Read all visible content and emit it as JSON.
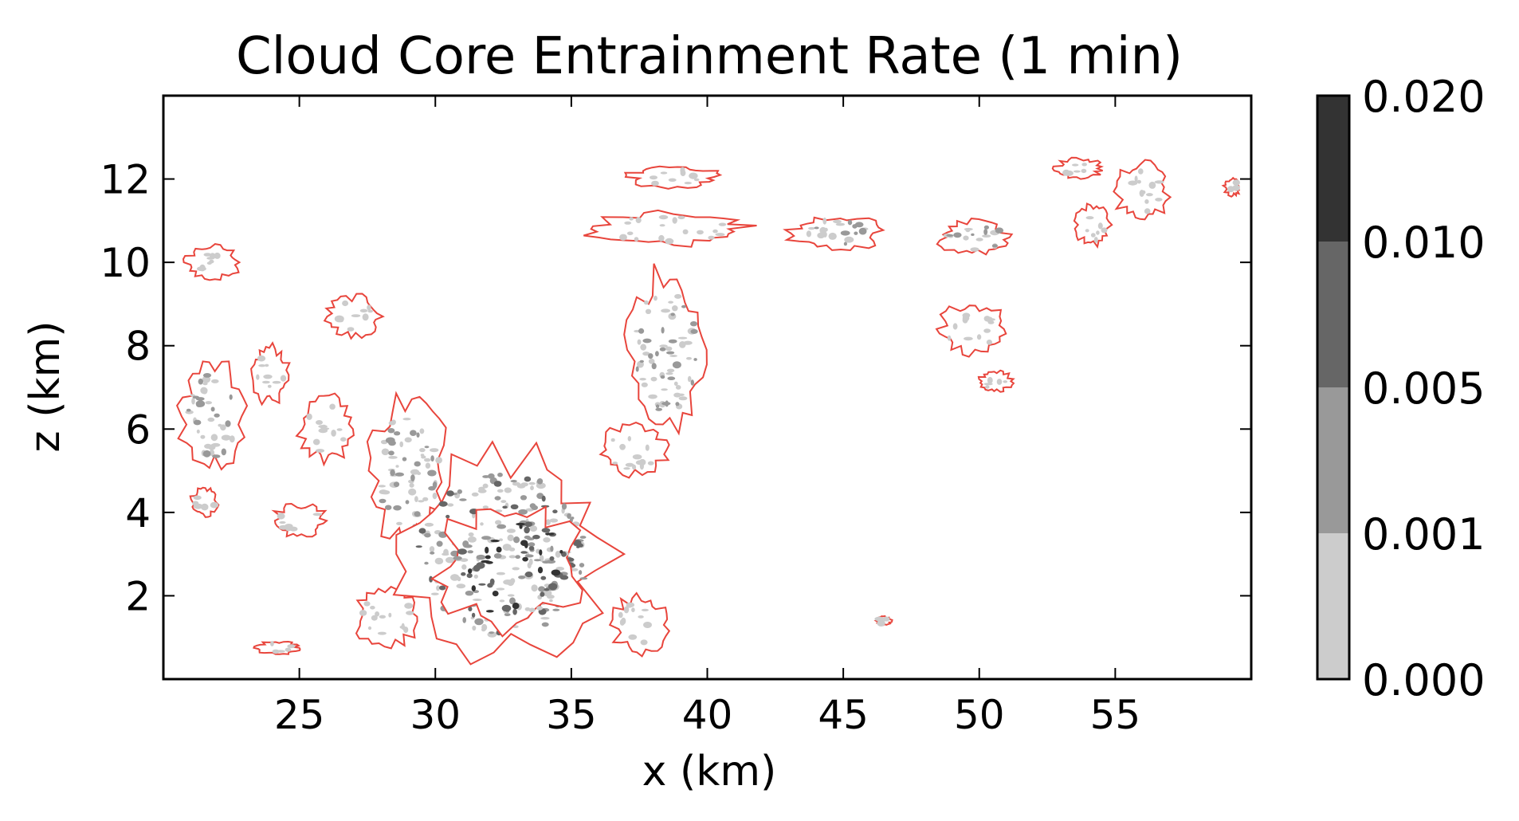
{
  "chart_data": {
    "type": "heatmap",
    "title": "Cloud Core Entrainment Rate (1 min)",
    "xlabel": "x (km)",
    "ylabel": "z (km)",
    "xlim": [
      20,
      60
    ],
    "ylim": [
      0,
      14
    ],
    "xticks": [
      25,
      30,
      35,
      40,
      45,
      50,
      55
    ],
    "yticks": [
      2,
      4,
      6,
      8,
      10,
      12
    ],
    "grid": false,
    "colorbar": {
      "placement": "right",
      "levels": [
        "0.000",
        "0.001",
        "0.005",
        "0.010",
        "0.020"
      ],
      "colors": [
        "#cccccc",
        "#999999",
        "#666666",
        "#333333"
      ]
    },
    "outline_color": "#e8453c",
    "contour_line_color": "#222222",
    "regions": [
      {
        "x": [
          20.8,
          22.8
        ],
        "z": [
          9.6,
          10.4
        ],
        "level": 1
      },
      {
        "x": [
          20.6,
          23.0
        ],
        "z": [
          5.0,
          7.6
        ],
        "level": 2
      },
      {
        "x": [
          21.0,
          22.0
        ],
        "z": [
          3.9,
          4.6
        ],
        "level": 1
      },
      {
        "x": [
          23.3,
          24.6
        ],
        "z": [
          6.6,
          8.0
        ],
        "level": 1
      },
      {
        "x": [
          24.0,
          26.0
        ],
        "z": [
          3.4,
          4.2
        ],
        "level": 1
      },
      {
        "x": [
          25.0,
          27.0
        ],
        "z": [
          5.2,
          6.8
        ],
        "level": 1
      },
      {
        "x": [
          26.0,
          28.0
        ],
        "z": [
          8.2,
          9.2
        ],
        "level": 1
      },
      {
        "x": [
          23.4,
          25.0
        ],
        "z": [
          0.6,
          0.9
        ],
        "level": 1
      },
      {
        "x": [
          27.0,
          29.5
        ],
        "z": [
          0.8,
          2.2
        ],
        "level": 1
      },
      {
        "x": [
          27.5,
          30.5
        ],
        "z": [
          3.2,
          6.8
        ],
        "level": 2
      },
      {
        "x": [
          28.5,
          36.5
        ],
        "z": [
          0.5,
          5.5
        ],
        "level": 3
      },
      {
        "x": [
          30.0,
          35.5
        ],
        "z": [
          1.2,
          4.2
        ],
        "level": 4
      },
      {
        "x": [
          36.5,
          38.5
        ],
        "z": [
          0.6,
          2.0
        ],
        "level": 1
      },
      {
        "x": [
          37.0,
          40.0
        ],
        "z": [
          6.0,
          9.8
        ],
        "level": 2
      },
      {
        "x": [
          36.0,
          38.5
        ],
        "z": [
          4.9,
          6.1
        ],
        "level": 1
      },
      {
        "x": [
          35.5,
          41.5
        ],
        "z": [
          10.4,
          11.2
        ],
        "level": 1
      },
      {
        "x": [
          37.0,
          40.5
        ],
        "z": [
          11.8,
          12.3
        ],
        "level": 1
      },
      {
        "x": [
          43.0,
          46.5
        ],
        "z": [
          10.3,
          11.1
        ],
        "level": 2
      },
      {
        "x": [
          48.5,
          51.2
        ],
        "z": [
          10.2,
          11.0
        ],
        "level": 2
      },
      {
        "x": [
          48.5,
          51.0
        ],
        "z": [
          7.8,
          9.0
        ],
        "level": 1
      },
      {
        "x": [
          50.0,
          51.2
        ],
        "z": [
          6.9,
          7.4
        ],
        "level": 1
      },
      {
        "x": [
          52.8,
          54.5
        ],
        "z": [
          12.0,
          12.5
        ],
        "level": 1
      },
      {
        "x": [
          53.5,
          54.8
        ],
        "z": [
          10.4,
          11.4
        ],
        "level": 1
      },
      {
        "x": [
          55.0,
          57.0
        ],
        "z": [
          11.0,
          12.4
        ],
        "level": 1
      },
      {
        "x": [
          59.0,
          59.6
        ],
        "z": [
          11.6,
          12.0
        ],
        "level": 1
      },
      {
        "x": [
          46.2,
          46.8
        ],
        "z": [
          1.3,
          1.5
        ],
        "level": 1
      }
    ]
  }
}
